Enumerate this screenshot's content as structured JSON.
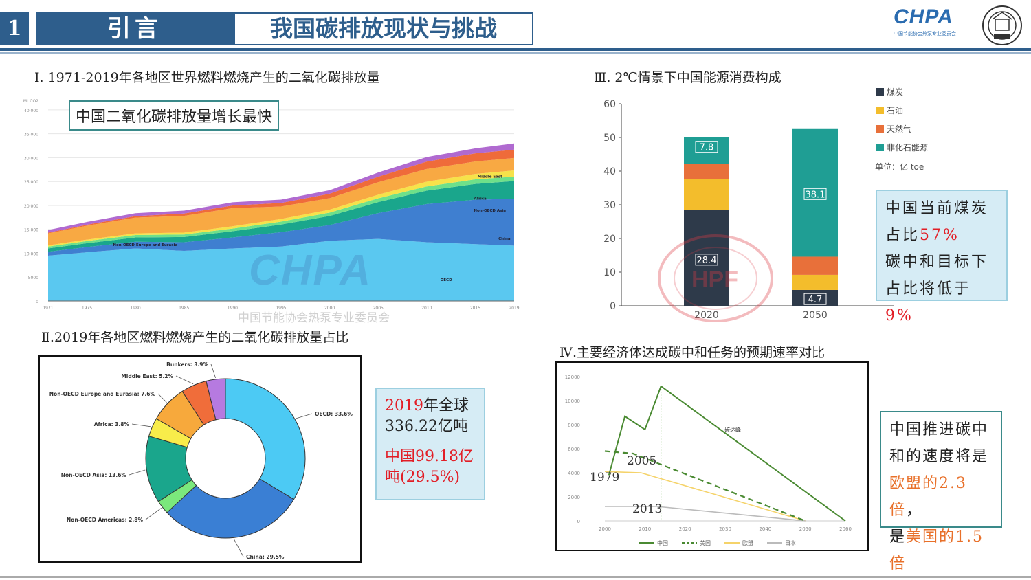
{
  "header": {
    "number": "1",
    "section": "引言",
    "title": "我国碳排放现状与挑战",
    "logo_text": "CHPA",
    "logo_sub": "中国节能协会热泵专业委员会"
  },
  "watermark": {
    "text": "CHPA",
    "sub": "中国节能协会热泵专业委员会",
    "stamp_text": "HPF"
  },
  "panel1": {
    "title": "Ⅰ. 1971-2019年各地区世界燃料燃烧产生的二氧化碳排放量",
    "callout": "中国二氧化碳排放量增长最快",
    "chart_data": {
      "type": "area",
      "unit": "Mt CO2",
      "x": [
        1971,
        1975,
        1980,
        1985,
        1990,
        1995,
        2000,
        2005,
        2010,
        2015,
        2019
      ],
      "xticks": [
        "1971",
        "1975",
        "1980",
        "1985",
        "1990",
        "1995",
        "2000",
        "2005",
        "2010",
        "2015",
        "2019"
      ],
      "yticks": [
        "0",
        "5000",
        "10 000",
        "15 000",
        "20 000",
        "25 000",
        "30 000",
        "35 000",
        "40 000",
        "Mt CO2"
      ],
      "ylim": [
        0,
        42000
      ],
      "series": [
        {
          "name": "OECD",
          "color": "#5ac8f0",
          "values": [
            9500,
            10200,
            11000,
            10500,
            11000,
            11400,
            12600,
            13000,
            12300,
            11900,
            11600
          ]
        },
        {
          "name": "China",
          "color": "#3f7fd0",
          "values": [
            800,
            1100,
            1400,
            1800,
            2300,
            3000,
            3300,
            5400,
            8000,
            9300,
            9800
          ]
        },
        {
          "name": "Non-OECD Asia",
          "color": "#1aa68c",
          "values": [
            700,
            800,
            900,
            1100,
            1300,
            1600,
            1900,
            2300,
            2800,
            3300,
            3700
          ]
        },
        {
          "name": "Non-OECD Americas",
          "color": "#6ee08a",
          "values": [
            400,
            450,
            500,
            520,
            560,
            620,
            700,
            780,
            880,
            950,
            930
          ]
        },
        {
          "name": "Africa",
          "color": "#f6e24a",
          "values": [
            250,
            300,
            350,
            400,
            480,
            550,
            620,
            780,
            1000,
            1150,
            1300
          ]
        },
        {
          "name": "Non-OECD Europe and Eurasia",
          "color": "#f8a943",
          "values": [
            2500,
            2900,
            3300,
            3500,
            3800,
            2600,
            2400,
            2600,
            2650,
            2600,
            2600
          ]
        },
        {
          "name": "Middle East",
          "color": "#ef6b3a",
          "values": [
            150,
            220,
            320,
            480,
            560,
            750,
            930,
            1150,
            1550,
            1700,
            1750
          ]
        },
        {
          "name": "Bunkers",
          "color": "#b06ad0",
          "values": [
            550,
            580,
            600,
            620,
            650,
            700,
            750,
            880,
            960,
            1050,
            1300
          ]
        }
      ],
      "labels": [
        "Middle East",
        "Africa",
        "Non-OECD Asia",
        "China",
        "Non-OECD Europe and Eurasia",
        "OECD"
      ]
    }
  },
  "panel2": {
    "title": "Ⅱ.2019年各地区燃料燃烧产生的二氧化碳排放量占比",
    "chart_data": {
      "type": "pie",
      "categories": [
        "OECD",
        "China",
        "Non-OECD Americas",
        "Non-OECD Asia",
        "Africa",
        "Non-OECD Europe and Eurasia",
        "Middle East",
        "Bunkers"
      ],
      "values": [
        33.6,
        29.5,
        2.8,
        13.6,
        3.8,
        7.6,
        5.2,
        3.9
      ],
      "colors": [
        "#4ccaf4",
        "#3a7fd4",
        "#7be87c",
        "#1aa68c",
        "#f8ec4a",
        "#f7a93c",
        "#f06d3a",
        "#b67ae0"
      ],
      "labels": [
        "OECD: 33.6%",
        "China: 29.5%",
        "Non-OECD Americas: 2.8%",
        "Non-OECD Asia: 13.6%",
        "Africa: 3.8%",
        "Non-OECD Europe and Eurasia: 7.6%",
        "Middle East: 5.2%",
        "Bunkers: 3.9%"
      ]
    },
    "note": {
      "line1_red": "2019",
      "line1_rest": "年全球",
      "line2": "336.22亿吨",
      "line3_red": "中国99.18亿",
      "line4_a": "吨",
      "line4_b": "(29.5%)"
    }
  },
  "panel3": {
    "title": "Ⅲ. 2℃情景下中国能源消费构成",
    "chart_data": {
      "type": "bar",
      "categories": [
        "2020",
        "2050"
      ],
      "series": [
        {
          "name": "煤炭",
          "color": "#2e3a4a",
          "values": [
            28.4,
            4.7
          ]
        },
        {
          "name": "石油",
          "color": "#f3bd2c",
          "values": [
            9.3,
            4.5
          ]
        },
        {
          "name": "天然气",
          "color": "#e8703a",
          "values": [
            4.5,
            5.4
          ]
        },
        {
          "name": "非化石能源",
          "color": "#1f9e94",
          "values": [
            7.8,
            38.1
          ]
        }
      ],
      "data_labels": [
        "7.8",
        "28.4",
        "38.1",
        "4.7"
      ],
      "yticks": [
        "0",
        "10",
        "20",
        "30",
        "40",
        "50",
        "60"
      ],
      "ylim": [
        0,
        60
      ],
      "unit": "单位：亿 toe"
    },
    "note": {
      "line1": "中国当前煤炭",
      "line2_a": "占比",
      "line2_b": "57%",
      "line3": "碳中和目标下",
      "line4_a": "占比将低于",
      "line4_b": "9%"
    }
  },
  "panel4": {
    "title": "Ⅳ.主要经济体达成碳中和任务的预期速率对比",
    "chart_data": {
      "type": "line",
      "x": [
        2000,
        2010,
        2020,
        2030,
        2040,
        2050,
        2060
      ],
      "xticks": [
        "2000",
        "2010",
        "2020",
        "2030",
        "2040",
        "2050",
        "2060"
      ],
      "yticks": [
        "0",
        "2000",
        "4000",
        "6000",
        "8000",
        "10000",
        "12000"
      ],
      "ylim": [
        0,
        12000
      ],
      "xlim": [
        2000,
        2060
      ],
      "series": [
        {
          "name": "中国",
          "color": "#4a8a32",
          "dash": "",
          "points": [
            [
              2001,
              3800
            ],
            [
              2005,
              8700
            ],
            [
              2010,
              7600
            ],
            [
              2014,
              11200
            ],
            [
              2060,
              0
            ]
          ]
        },
        {
          "name": "美国",
          "color": "#4a8a32",
          "dash": "8,5",
          "points": [
            [
              2000,
              5800
            ],
            [
              2007,
              5600
            ],
            [
              2050,
              0
            ]
          ]
        },
        {
          "name": "欧盟",
          "color": "#f5d36a",
          "dash": "",
          "points": [
            [
              2000,
              4100
            ],
            [
              2009,
              4000
            ],
            [
              2050,
              0
            ]
          ]
        },
        {
          "name": "日本",
          "color": "#bbbbbb",
          "dash": "",
          "points": [
            [
              2000,
              1200
            ],
            [
              2013,
              1200
            ],
            [
              2050,
              0
            ]
          ]
        }
      ],
      "annotations": [
        "1979",
        "2005",
        "2013",
        "碳达峰"
      ],
      "legend": [
        "中国",
        "美国",
        "欧盟",
        "日本"
      ]
    },
    "note": {
      "line1": "中国推进碳中",
      "line2": "和的速度将是",
      "line3_orange": "欧盟的2.3倍",
      "line3_rest": "，",
      "line4_a": "是",
      "line4_b": "美国的1.5倍"
    }
  }
}
